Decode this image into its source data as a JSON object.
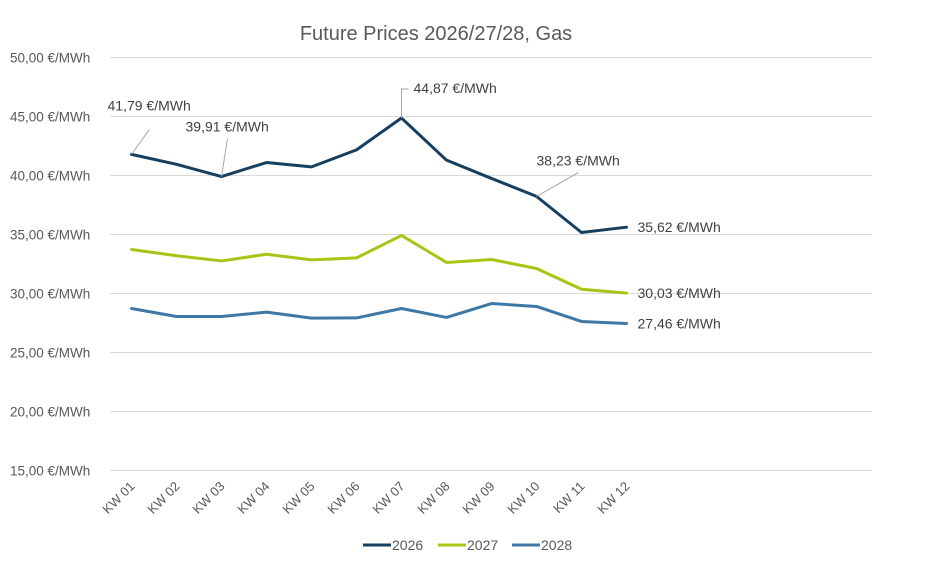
{
  "chart_data": {
    "type": "line",
    "title": "Future Prices 2026/27/28, Gas",
    "xlabel": "",
    "ylabel": "",
    "ylim": [
      15,
      50
    ],
    "y_tick_step": 5,
    "y_tick_labels": [
      "15,00 €/MWh",
      "20,00 €/MWh",
      "25,00 €/MWh",
      "30,00 €/MWh",
      "35,00 €/MWh",
      "40,00 €/MWh",
      "45,00 €/MWh",
      "50,00 €/MWh"
    ],
    "y_ticks": [
      15,
      20,
      25,
      30,
      35,
      40,
      45,
      50
    ],
    "grid": true,
    "legend_position": "bottom",
    "categories": [
      "KW 01",
      "KW 02",
      "KW 03",
      "KW 04",
      "KW 05",
      "KW 06",
      "KW 07",
      "KW 08",
      "KW 09",
      "KW 10",
      "KW 11",
      "KW 12"
    ],
    "series": [
      {
        "name": "2026",
        "color": "#173F5F",
        "values": [
          41.79,
          40.95,
          39.91,
          41.1,
          40.73,
          42.17,
          44.87,
          41.3,
          39.75,
          38.23,
          35.17,
          35.62
        ]
      },
      {
        "name": "2027",
        "color": "#A5C617",
        "values": [
          33.73,
          33.2,
          32.76,
          33.33,
          32.85,
          33.02,
          34.92,
          32.63,
          32.88,
          32.12,
          30.36,
          30.03
        ]
      },
      {
        "name": "2028",
        "color": "#3F78A5",
        "values": [
          28.73,
          28.05,
          28.05,
          28.42,
          27.91,
          27.93,
          28.73,
          27.97,
          29.15,
          28.9,
          27.63,
          27.46
        ]
      }
    ],
    "annotations": [
      {
        "series": 0,
        "index": 0,
        "text": "41,79 €/MWh"
      },
      {
        "series": 0,
        "index": 2,
        "text": "39,91 €/MWh"
      },
      {
        "series": 0,
        "index": 6,
        "text": "44,87 €/MWh"
      },
      {
        "series": 0,
        "index": 9,
        "text": "38,23 €/MWh"
      },
      {
        "series": 0,
        "index": 11,
        "text": "35,62 €/MWh"
      },
      {
        "series": 1,
        "index": 11,
        "text": "30,03 €/MWh"
      },
      {
        "series": 2,
        "index": 11,
        "text": "27,46 €/MWh"
      }
    ]
  }
}
